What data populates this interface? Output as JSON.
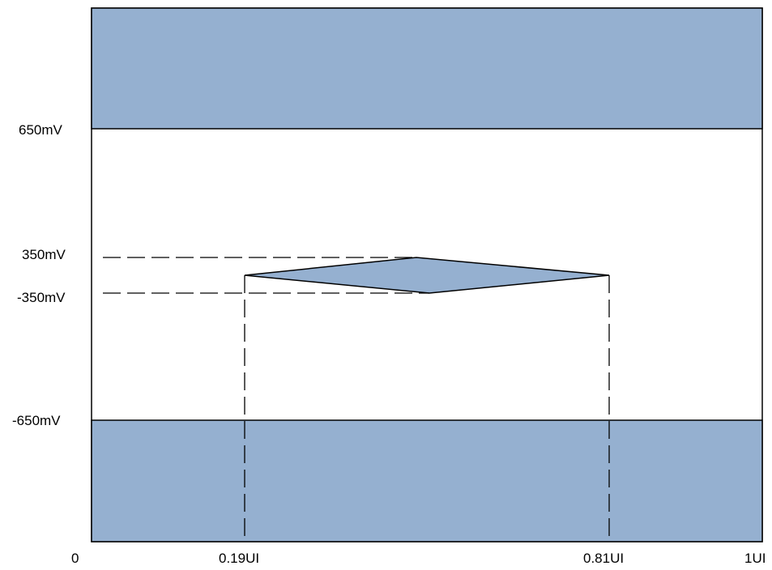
{
  "diagram": {
    "y_labels": {
      "top_limit": "650mV",
      "eye_top": "350mV",
      "eye_bottom": "-350mV",
      "bottom_limit": "-650mV"
    },
    "x_labels": {
      "start": "0",
      "eye_left": "0.19UI",
      "eye_right": "0.81UI",
      "end": "1UI"
    },
    "colors": {
      "fill": "#95b0d0",
      "stroke": "#000000",
      "background": "#ffffff"
    }
  }
}
